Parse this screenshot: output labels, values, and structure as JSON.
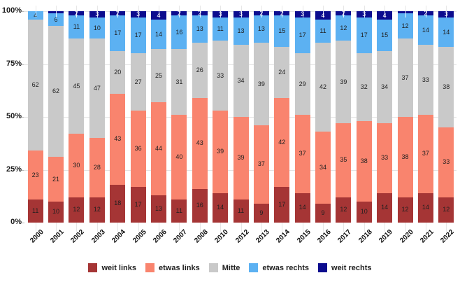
{
  "chart_data": {
    "type": "bar",
    "stacked": true,
    "percent_scale": true,
    "title": "",
    "xlabel": "",
    "ylabel": "",
    "ylim": [
      0,
      100
    ],
    "yticks": [
      0,
      25,
      50,
      75,
      100
    ],
    "ytick_labels": [
      "0%",
      "25%",
      "50%",
      "75%",
      "100%"
    ],
    "grid": true,
    "legend_position": "bottom",
    "min_segment_label": 2,
    "categories": [
      "2000",
      "2001",
      "2002",
      "2003",
      "2004",
      "2005",
      "2006",
      "2007",
      "2008",
      "2010",
      "2012",
      "2013",
      "2014",
      "2015",
      "2016",
      "2017",
      "2018",
      "2019",
      "2020",
      "2021",
      "2022"
    ],
    "series": [
      {
        "name": "weit links",
        "color": "#a53535",
        "label_color": "#1f1f1f",
        "values": [
          11,
          10,
          12,
          12,
          18,
          17,
          13,
          11,
          16,
          14,
          11,
          9,
          17,
          14,
          9,
          12,
          10,
          14,
          12,
          14,
          12
        ]
      },
      {
        "name": "etwas links",
        "color": "#f9846e",
        "label_color": "#1f1f1f",
        "values": [
          23,
          21,
          30,
          28,
          43,
          36,
          44,
          40,
          43,
          39,
          39,
          37,
          42,
          37,
          34,
          35,
          38,
          33,
          38,
          37,
          33
        ]
      },
      {
        "name": "Mitte",
        "color": "#c9c9c9",
        "label_color": "#1f1f1f",
        "values": [
          62,
          62,
          45,
          47,
          20,
          27,
          25,
          31,
          26,
          33,
          34,
          39,
          24,
          29,
          42,
          39,
          32,
          34,
          37,
          33,
          38
        ]
      },
      {
        "name": "etwas rechts",
        "color": "#5cb1f2",
        "label_color": "#1f1f1f",
        "values": [
          4,
          6,
          11,
          10,
          17,
          17,
          14,
          16,
          13,
          11,
          13,
          13,
          15,
          17,
          11,
          12,
          17,
          15,
          12,
          14,
          14
        ]
      },
      {
        "name": "weit rechts",
        "color": "#0c0c8e",
        "label_color": "#ffffff",
        "values": [
          0,
          1,
          2,
          3,
          2,
          3,
          4,
          2,
          2,
          3,
          3,
          2,
          2,
          3,
          4,
          2,
          3,
          4,
          1,
          2,
          3
        ]
      }
    ]
  }
}
